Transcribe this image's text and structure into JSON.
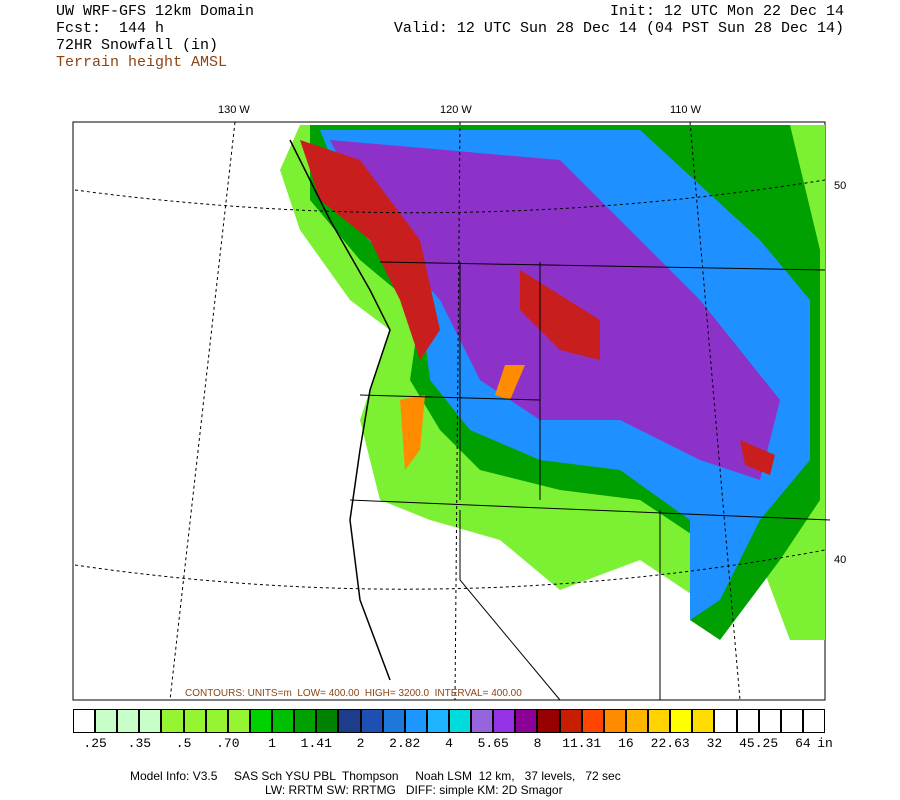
{
  "header": {
    "model": "UW WRF-GFS 12km Domain",
    "forecast": "Fcst:  144 h",
    "field": "72HR Snowfall (in)",
    "contour_field": "Terrain height AMSL",
    "init": "Init: 12 UTC Mon 22 Dec 14",
    "valid": "Valid: 12 UTC Sun 28 Dec 14 (04 PST Sun 28 Dec 14)"
  },
  "map": {
    "lon_labels": [
      "130 W",
      "120 W",
      "110 W"
    ],
    "lat_labels": [
      "50",
      "40"
    ],
    "contour_info": "CONTOURS: UNITS=m  LOW= 400.00  HIGH= 3200.0  INTERVAL= 400.00"
  },
  "colorbar": {
    "labels": [
      ".25",
      ".35",
      ".5",
      ".70",
      "1",
      "1.41",
      "2",
      "2.82",
      "4",
      "5.65",
      "8",
      "11.31",
      "16",
      "22.63",
      "32",
      "45.25",
      "64"
    ],
    "unit": "in"
  },
  "footer": [
    "Model Info: V3.5     SAS Sch YSU PBL  Thompson     Noah LSM  12 km,   37 levels,   72 sec",
    "LW: RRTM SW: RRTMG   DIFF: simple KM: 2D Smagor"
  ]
}
